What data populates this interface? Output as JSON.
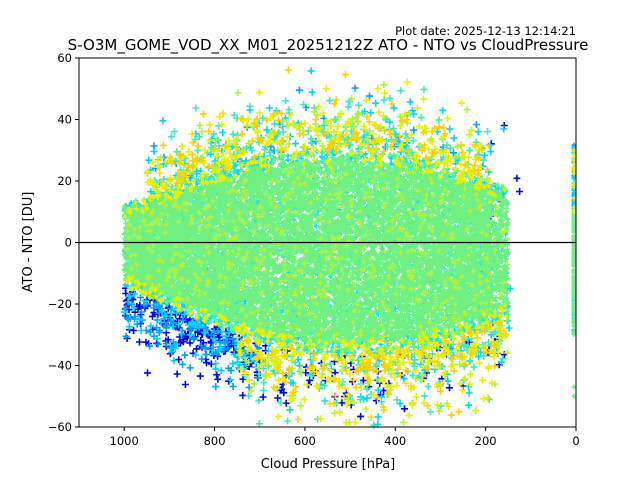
{
  "plot_date": "Plot date: 2025-12-13 12:14:21",
  "chart_data": {
    "type": "scatter",
    "title": "S-O3M_GOME_VOD_XX_M01_20251212Z ATO - NTO vs CloudPressure",
    "xlabel": "Cloud Pressure [hPa]",
    "ylabel": "ATO - NTO [DU]",
    "xlim": [
      1100,
      0
    ],
    "ylim": [
      -60,
      60
    ],
    "x_inverted": true,
    "xticks": [
      1000,
      800,
      600,
      400,
      200,
      0
    ],
    "xtick_labels": [
      "1000",
      "800",
      "600",
      "400",
      "200",
      "0"
    ],
    "yticks": [
      60,
      40,
      20,
      0,
      -20,
      -40,
      -60
    ],
    "ytick_labels": [
      "60",
      "40",
      "20",
      "0",
      "−20",
      "−40",
      "−60"
    ],
    "reference_line_y": 0,
    "marker": "+",
    "grid": false,
    "legend": "none",
    "colormap": [
      "#0000ff",
      "#00a0ff",
      "#00d4ff",
      "#40e8c0",
      "#70f080",
      "#b0f040",
      "#e8f000",
      "#ffd000"
    ],
    "clusters": [
      {
        "name": "main-body",
        "x_range": [
          1000,
          150
        ],
        "y_center": -2,
        "y_spread": 18,
        "dominant_color": "#70f080"
      },
      {
        "name": "upper-edge",
        "x_range": [
          950,
          200
        ],
        "y_range": [
          20,
          58
        ],
        "mixed_colors": true
      },
      {
        "name": "lower-left-blue",
        "x_range": [
          1000,
          700
        ],
        "y_range": [
          -50,
          -22
        ],
        "dominant_color": "#0000ff"
      },
      {
        "name": "lower-right-yellow",
        "x_range": [
          700,
          150
        ],
        "y_range": [
          -58,
          -25
        ],
        "dominant_color": "#e8f000"
      },
      {
        "name": "zero-pressure-column",
        "x_value": 0,
        "y_range": [
          -33,
          33
        ],
        "dominant_color": "#70f080"
      }
    ]
  }
}
